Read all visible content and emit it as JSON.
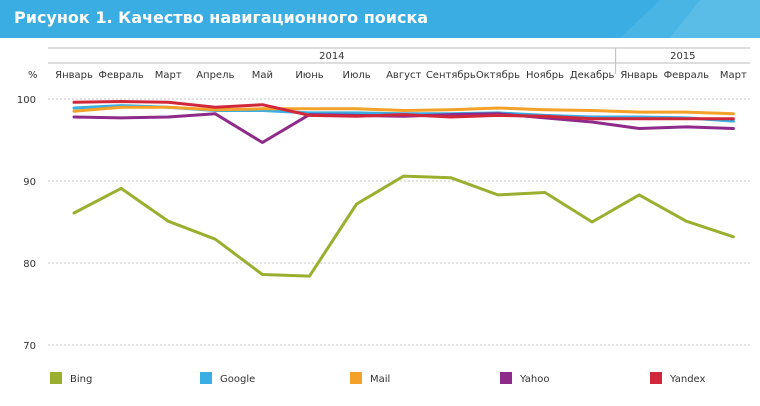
{
  "title": "Рисунок 1. Качество навигационного поиска",
  "chart_data": {
    "type": "line",
    "title": "Рисунок 1. Качество навигационного поиска",
    "ylabel": "%",
    "ylim": [
      70,
      100
    ],
    "yticks": [
      100,
      90,
      80,
      70
    ],
    "grid": true,
    "legend_position": "bottom",
    "years": [
      {
        "label": "2014",
        "span": [
          0,
          11
        ]
      },
      {
        "label": "2015",
        "span": [
          12,
          14
        ]
      }
    ],
    "categories": [
      "Январь",
      "Февраль",
      "Март",
      "Апрель",
      "Май",
      "Июнь",
      "Июль",
      "Август",
      "Сентябрь",
      "Октябрь",
      "Ноябрь",
      "Декабрь",
      "Январь",
      "Февраль",
      "Март"
    ],
    "series": [
      {
        "name": "Bing",
        "color": "#9aaf2f",
        "values": [
          86.1,
          89.1,
          85.1,
          82.9,
          78.6,
          78.4,
          87.2,
          90.6,
          90.4,
          88.3,
          88.6,
          85.0,
          88.3,
          85.1,
          83.2
        ]
      },
      {
        "name": "Google",
        "color": "#3aaee3",
        "values": [
          98.9,
          99.2,
          99.0,
          98.6,
          98.6,
          98.3,
          98.3,
          98.2,
          98.2,
          98.3,
          98.0,
          97.8,
          97.8,
          97.7,
          97.3
        ]
      },
      {
        "name": "Mail",
        "color": "#f4a12a",
        "values": [
          98.5,
          99.0,
          99.0,
          98.7,
          98.8,
          98.8,
          98.8,
          98.6,
          98.7,
          98.9,
          98.7,
          98.6,
          98.4,
          98.4,
          98.2
        ]
      },
      {
        "name": "Yahoo",
        "color": "#8e2a8a",
        "values": [
          97.8,
          97.7,
          97.8,
          98.2,
          94.7,
          98.1,
          98.0,
          97.9,
          98.1,
          98.2,
          97.7,
          97.2,
          96.4,
          96.6,
          96.4
        ]
      },
      {
        "name": "Yandex",
        "color": "#d0283a",
        "values": [
          99.6,
          99.7,
          99.6,
          99.0,
          99.3,
          98.0,
          97.9,
          98.1,
          97.8,
          98.0,
          97.9,
          97.6,
          97.6,
          97.6,
          97.6
        ]
      }
    ]
  }
}
